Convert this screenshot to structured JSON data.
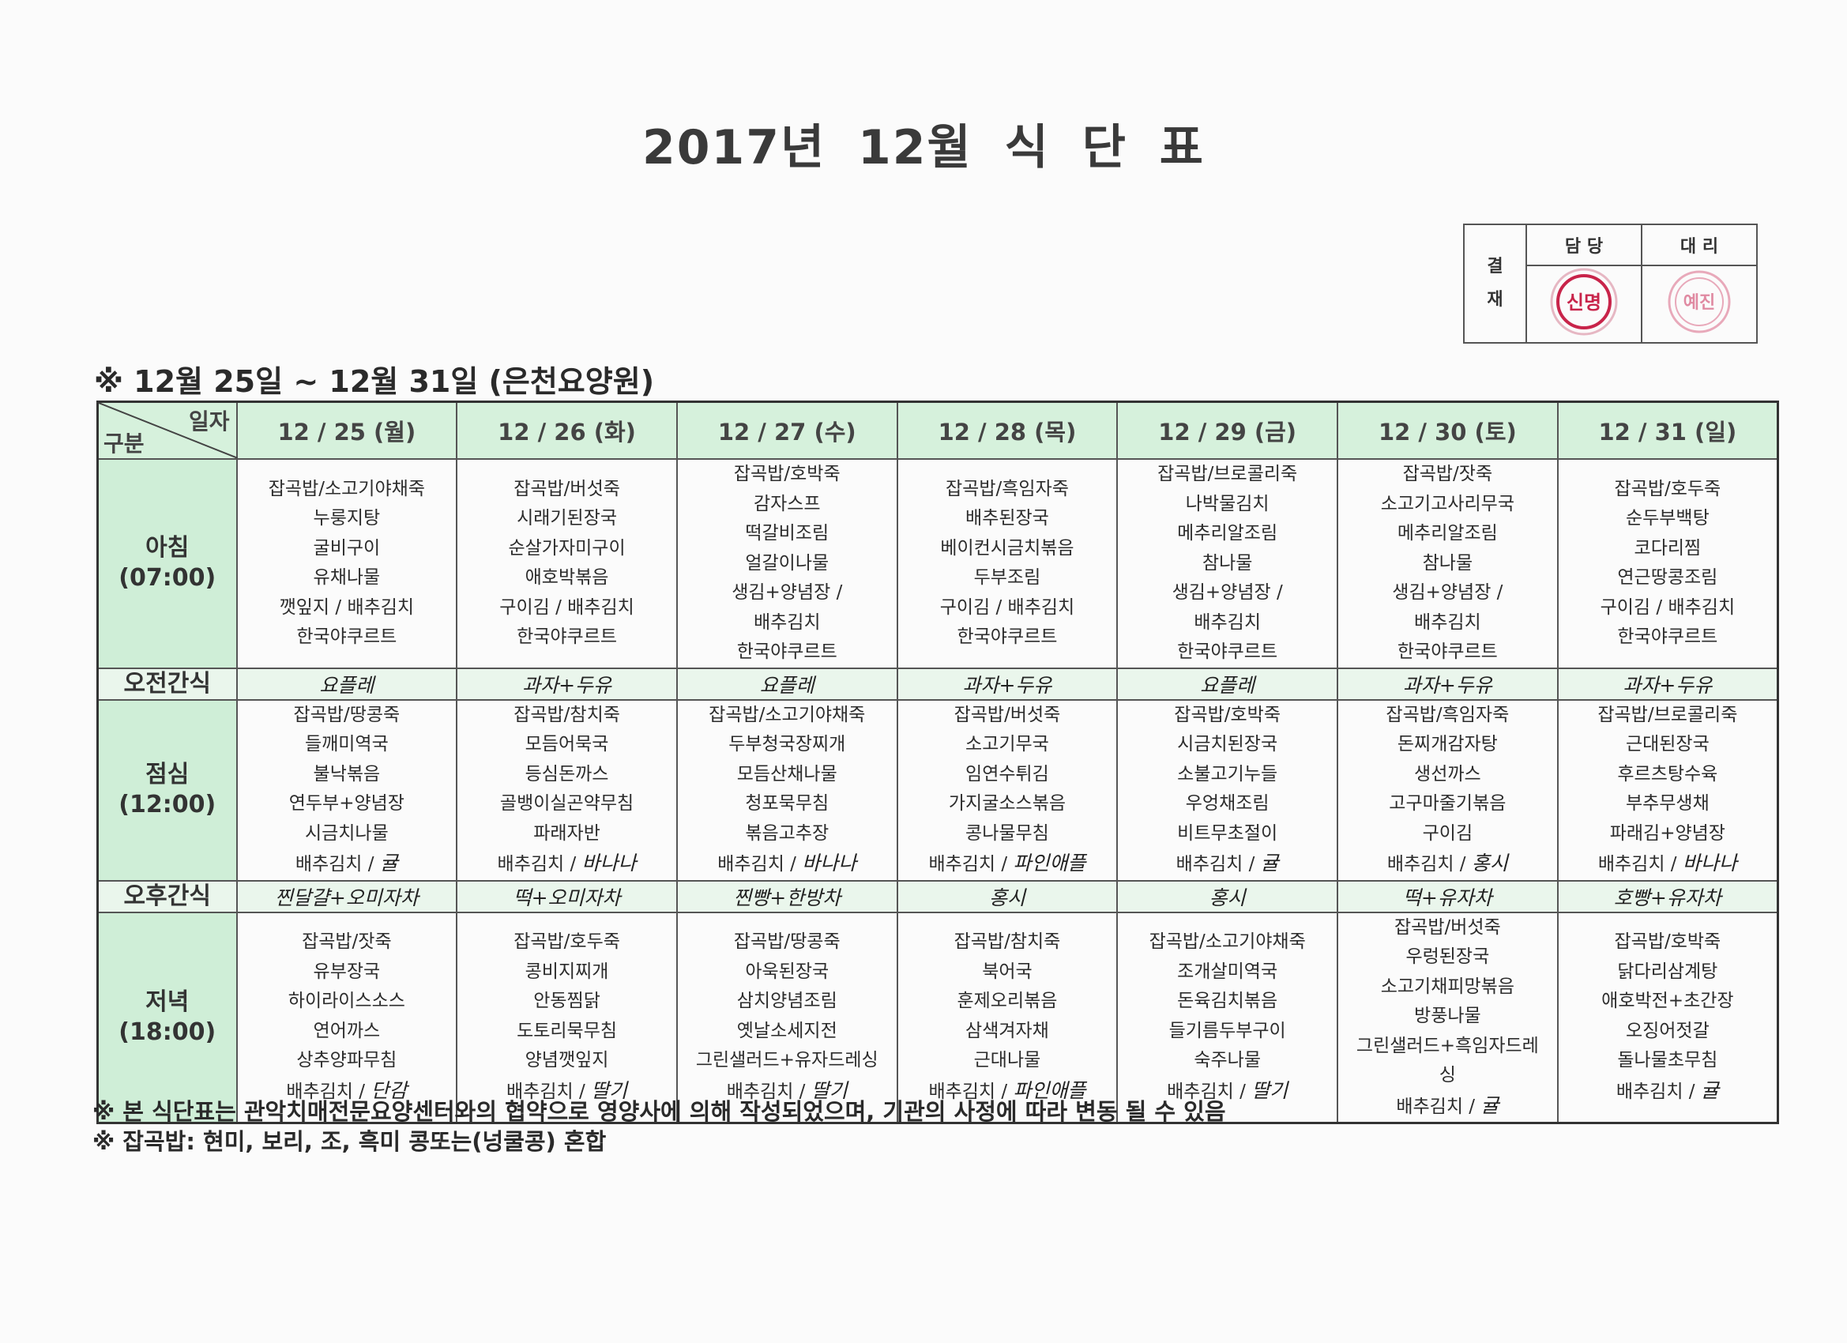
{
  "title": "2017년 12월 식 단 표",
  "approval": {
    "label": "결재",
    "columns": [
      "담 당",
      "대 리"
    ],
    "stamps": [
      "신명",
      "예진"
    ],
    "stamp_color": "#c8244a"
  },
  "subtitle": "※ 12월 25일 ~ 12월 31일 (은천요양원)",
  "table": {
    "corner_top": "일자",
    "corner_bottom": "구분",
    "header_color": "#d6f1dc",
    "categories": {
      "breakfast": {
        "name": "아침",
        "time": "(07:00)"
      },
      "am_snack": {
        "name": "오전간식"
      },
      "lunch": {
        "name": "점심",
        "time": "(12:00)"
      },
      "pm_snack": {
        "name": "오후간식"
      },
      "dinner": {
        "name": "저녁",
        "time": "(18:00)"
      }
    },
    "days": [
      {
        "date": "12 / 25 (월)",
        "breakfast": [
          "잡곡밥/소고기야채죽",
          "누룽지탕",
          "굴비구이",
          "유채나물",
          "깻잎지 / 배추김치",
          "한국야쿠르트"
        ],
        "am_snack": "요플레",
        "lunch": [
          "잡곡밥/땅콩죽",
          "들깨미역국",
          "불낙볶음",
          "연두부+양념장",
          "시금치나물",
          "배추김치 /"
        ],
        "lunch_fruit": "귤",
        "pm_snack": "찐달걀+오미자차",
        "dinner": [
          "잡곡밥/잣죽",
          "유부장국",
          "하이라이스소스",
          "연어까스",
          "상추양파무침",
          "배추김치 /"
        ],
        "dinner_fruit": "단감"
      },
      {
        "date": "12 / 26 (화)",
        "breakfast": [
          "잡곡밥/버섯죽",
          "시래기된장국",
          "순살가자미구이",
          "애호박볶음",
          "구이김 / 배추김치",
          "한국야쿠르트"
        ],
        "am_snack": "과자+두유",
        "lunch": [
          "잡곡밥/참치죽",
          "모듬어묵국",
          "등심돈까스",
          "골뱅이실곤약무침",
          "파래자반",
          "배추김치 /"
        ],
        "lunch_fruit": "바나나",
        "pm_snack": "떡+오미자차",
        "dinner": [
          "잡곡밥/호두죽",
          "콩비지찌개",
          "안동찜닭",
          "도토리묵무침",
          "양념깻잎지",
          "배추김치 /"
        ],
        "dinner_fruit": "딸기"
      },
      {
        "date": "12 / 27 (수)",
        "breakfast": [
          "잡곡밥/호박죽",
          "감자스프",
          "떡갈비조림",
          "얼갈이나물",
          "생김+양념장 /",
          "배추김치",
          "한국야쿠르트"
        ],
        "am_snack": "요플레",
        "lunch": [
          "잡곡밥/소고기야채죽",
          "두부청국장찌개",
          "모듬산채나물",
          "청포묵무침",
          "볶음고추장",
          "배추김치 /"
        ],
        "lunch_fruit": "바나나",
        "pm_snack": "찐빵+한방차",
        "dinner": [
          "잡곡밥/땅콩죽",
          "아욱된장국",
          "삼치양념조림",
          "옛날소세지전",
          "그린샐러드+유자드레싱",
          "배추김치 /"
        ],
        "dinner_fruit": "딸기"
      },
      {
        "date": "12 / 28 (목)",
        "breakfast": [
          "잡곡밥/흑임자죽",
          "배추된장국",
          "베이컨시금치볶음",
          "두부조림",
          "구이김 / 배추김치",
          "한국야쿠르트"
        ],
        "am_snack": "과자+두유",
        "lunch": [
          "잡곡밥/버섯죽",
          "소고기무국",
          "임연수튀김",
          "가지굴소스볶음",
          "콩나물무침",
          "배추김치 /"
        ],
        "lunch_fruit": "파인애플",
        "pm_snack": "홍시",
        "dinner": [
          "잡곡밥/참치죽",
          "북어국",
          "훈제오리볶음",
          "삼색겨자채",
          "근대나물",
          "배추김치 /"
        ],
        "dinner_fruit": "파인애플"
      },
      {
        "date": "12 / 29 (금)",
        "breakfast": [
          "잡곡밥/브로콜리죽",
          "나박물김치",
          "메추리알조림",
          "참나물",
          "생김+양념장 /",
          "배추김치",
          "한국야쿠르트"
        ],
        "am_snack": "요플레",
        "lunch": [
          "잡곡밥/호박죽",
          "시금치된장국",
          "소불고기누들",
          "우엉채조림",
          "비트무초절이",
          "배추김치 /"
        ],
        "lunch_fruit": "귤",
        "pm_snack": "홍시",
        "dinner": [
          "잡곡밥/소고기야채죽",
          "조개살미역국",
          "돈육김치볶음",
          "들기름두부구이",
          "숙주나물",
          "배추김치 /"
        ],
        "dinner_fruit": "딸기"
      },
      {
        "date": "12 / 30 (토)",
        "breakfast": [
          "잡곡밥/잣죽",
          "소고기고사리무국",
          "메추리알조림",
          "참나물",
          "생김+양념장 /",
          "배추김치",
          "한국야쿠르트"
        ],
        "am_snack": "과자+두유",
        "lunch": [
          "잡곡밥/흑임자죽",
          "돈찌개감자탕",
          "생선까스",
          "고구마줄기볶음",
          "구이김",
          "배추김치 /"
        ],
        "lunch_fruit": "홍시",
        "pm_snack": "떡+유자차",
        "dinner": [
          "잡곡밥/버섯죽",
          "우렁된장국",
          "소고기채피망볶음",
          "방풍나물",
          "그린샐러드+흑임자드레",
          "싱",
          "배추김치 /"
        ],
        "dinner_fruit": "귤"
      },
      {
        "date": "12 / 31 (일)",
        "breakfast": [
          "잡곡밥/호두죽",
          "순두부백탕",
          "코다리찜",
          "연근땅콩조림",
          "구이김 / 배추김치",
          "한국야쿠르트"
        ],
        "am_snack": "과자+두유",
        "lunch": [
          "잡곡밥/브로콜리죽",
          "근대된장국",
          "후르츠탕수육",
          "부추무생채",
          "파래김+양념장",
          "배추김치 /"
        ],
        "lunch_fruit": "바나나",
        "pm_snack": "호빵+유자차",
        "dinner": [
          "잡곡밥/호박죽",
          "닭다리삼계탕",
          "애호박전+초간장",
          "오징어젓갈",
          "돌나물초무침",
          "배추김치 /"
        ],
        "dinner_fruit": "귤"
      }
    ]
  },
  "notes": [
    "※ 본 식단표는 관악치매전문요양센터와의 협약으로 영양사에 의해 작성되었으며, 기관의 사정에 따라 변동 될 수 있음",
    "※ 잡곡밥: 현미, 보리, 조, 흑미 콩또는(넝쿨콩) 혼합"
  ]
}
